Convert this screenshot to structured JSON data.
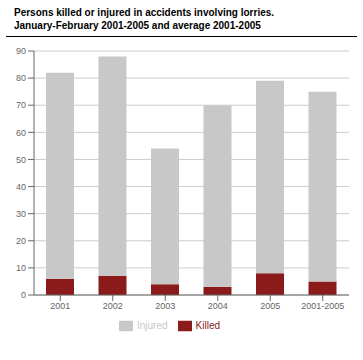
{
  "chart_data": {
    "type": "bar",
    "title": "Persons killed or injured in accidents involving lorries.",
    "subtitle": "January-February 2001-2005 and average 2001-2005",
    "categories": [
      "2001",
      "2002",
      "2003",
      "2004",
      "2005",
      "2001-2005"
    ],
    "series": [
      {
        "name": "Killed",
        "color": "#8B1A1A",
        "values": [
          6,
          7,
          4,
          3,
          8,
          5
        ]
      },
      {
        "name": "Injured",
        "color": "#C8C8C8",
        "values": [
          76,
          81,
          50,
          67,
          71,
          70
        ]
      }
    ],
    "stacked": true,
    "ylim": [
      0,
      90
    ],
    "yticks": [
      0,
      10,
      20,
      30,
      40,
      50,
      60,
      70,
      80,
      90
    ],
    "grid": true,
    "legend": "bottom"
  }
}
